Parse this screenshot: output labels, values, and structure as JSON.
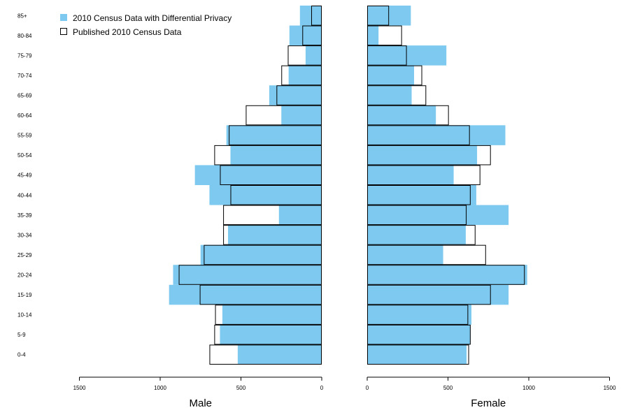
{
  "chart_data": {
    "type": "bar",
    "layout": "population-pyramid",
    "categories": [
      "0-4",
      "5-9",
      "10-14",
      "15-19",
      "20-24",
      "25-29",
      "30-34",
      "35-39",
      "40-44",
      "45-49",
      "50-54",
      "55-59",
      "60-64",
      "65-69",
      "70-74",
      "75-79",
      "80-84",
      "85+"
    ],
    "legend": {
      "position": "top-left",
      "items": [
        {
          "key": "dp",
          "label": "2010 Census Data with Differential Privacy",
          "style": "filled",
          "color": "#7dc9ef"
        },
        {
          "key": "published",
          "label": "Published 2010 Census Data",
          "style": "outline",
          "color": "#000000"
        }
      ]
    },
    "panels": [
      {
        "name": "male",
        "xlabel": "Male",
        "xlim": [
          1500,
          0
        ],
        "ticks": [
          "1500",
          "1000",
          "500",
          "0"
        ],
        "tick_values": [
          1500,
          1000,
          500,
          0
        ],
        "series": [
          {
            "name": "2010 Census Data with Differential Privacy",
            "values": [
              520,
              630,
              615,
              945,
              920,
              750,
              580,
              265,
              695,
              785,
              565,
              590,
              250,
              325,
              205,
              100,
              200,
              135
            ]
          },
          {
            "name": "Published 2010 Census Data",
            "values": [
              695,
              665,
              660,
              755,
              885,
              730,
              610,
              610,
              565,
              630,
              665,
              575,
              470,
              280,
              250,
              210,
              120,
              65
            ]
          }
        ]
      },
      {
        "name": "female",
        "xlabel": "Female",
        "xlim": [
          0,
          1500
        ],
        "ticks": [
          "0",
          "500",
          "1000",
          "1500"
        ],
        "tick_values": [
          0,
          500,
          1000,
          1500
        ],
        "series": [
          {
            "name": "2010 Census Data with Differential Privacy",
            "values": [
              615,
              640,
              645,
              875,
              990,
              470,
              610,
              875,
              675,
              535,
              680,
              855,
              425,
              275,
              290,
              490,
              70,
              270
            ]
          },
          {
            "name": "Published 2010 Census Data",
            "values": [
              630,
              640,
              625,
              765,
              975,
              735,
              670,
              615,
              640,
              700,
              765,
              635,
              505,
              365,
              340,
              245,
              215,
              135
            ]
          }
        ]
      }
    ],
    "colors": {
      "dp_fill": "#7dc9ef",
      "published_stroke": "#000000"
    }
  }
}
